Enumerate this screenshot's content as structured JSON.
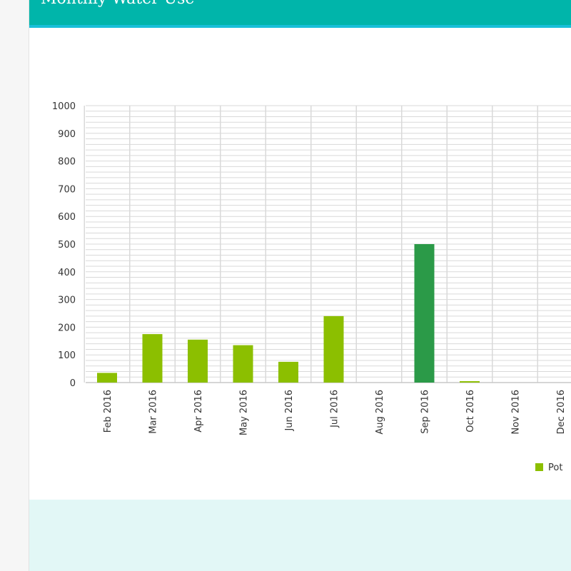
{
  "header": {
    "title": "Monthly Water Use"
  },
  "colors": {
    "header": "#00b5aa",
    "bar": "#8cbf00",
    "bar_highlight": "#2b9a48",
    "grid": "#d9d9d9"
  },
  "chart_data": {
    "type": "bar",
    "title": "",
    "xlabel": "",
    "ylabel": "",
    "ylim": [
      0,
      1000
    ],
    "yticks": [
      0,
      100,
      200,
      300,
      400,
      500,
      600,
      700,
      800,
      900,
      1000
    ],
    "grid": true,
    "legend_position": "bottom-right",
    "categories": [
      "Feb 2016",
      "Mar 2016",
      "Apr 2016",
      "May 2016",
      "Jun 2016",
      "Jul 2016",
      "Aug 2016",
      "Sep 2016",
      "Oct 2016",
      "Nov 2016",
      "Dec 2016"
    ],
    "series": [
      {
        "name": "Pot",
        "values": [
          35,
          175,
          155,
          135,
          75,
          240,
          0,
          500,
          5,
          0,
          0
        ]
      }
    ],
    "highlighted_category": "Sep 2016"
  }
}
